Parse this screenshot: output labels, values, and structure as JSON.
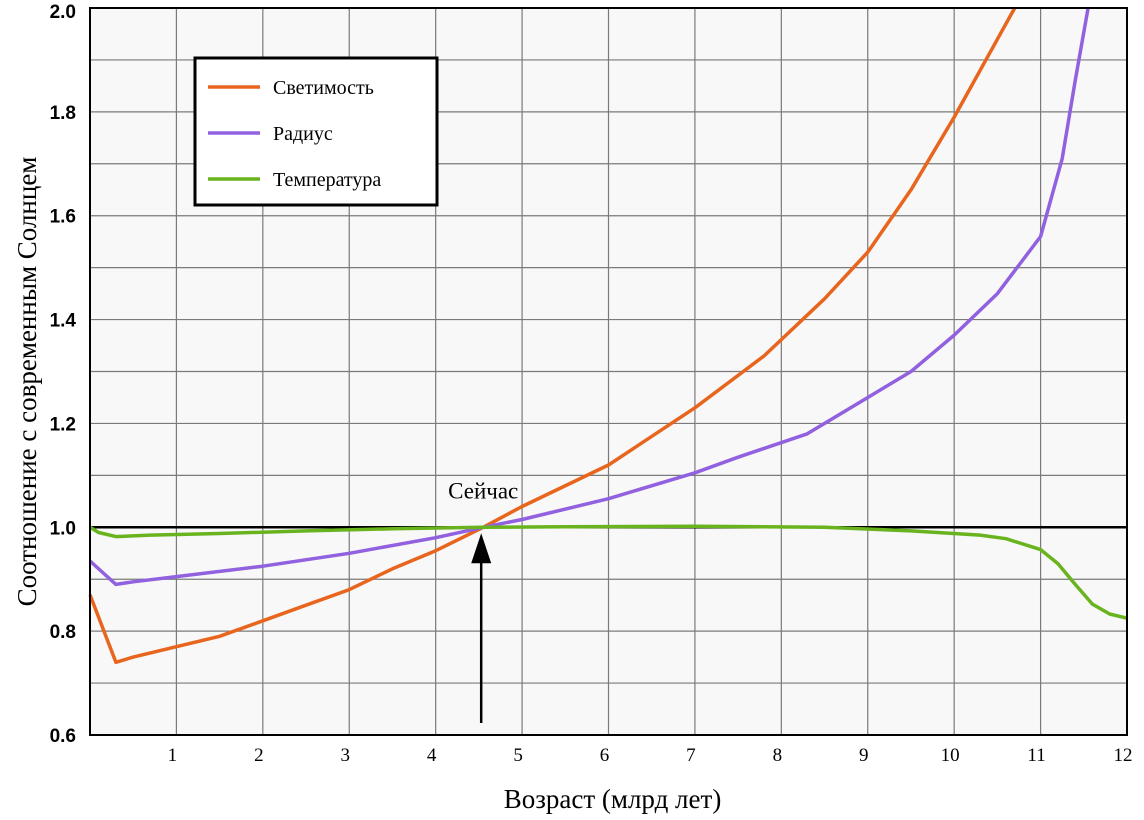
{
  "chart_data": {
    "type": "line",
    "title": "",
    "xlabel": "Возраст (млрд лет)",
    "ylabel": "Соотношение с современным Солнцем",
    "xlim": [
      0,
      12
    ],
    "ylim": [
      0.6,
      2.0
    ],
    "xticks": [
      "1",
      "2",
      "3",
      "4",
      "5",
      "6",
      "7",
      "8",
      "9",
      "10",
      "11",
      "12"
    ],
    "yticks": [
      "0.6",
      "0.8",
      "1.0",
      "1.2",
      "1.4",
      "1.6",
      "1.8",
      "2.0"
    ],
    "grid": true,
    "legend_position": "top-left",
    "reference_line_y": 1.0,
    "annotation": {
      "text": "Сейчас",
      "x": 4.55,
      "y": 1.0
    },
    "series": [
      {
        "name": "Светимость",
        "color": "#e8651e",
        "points": [
          [
            0,
            0.87
          ],
          [
            0.3,
            0.74
          ],
          [
            0.5,
            0.75
          ],
          [
            1,
            0.77
          ],
          [
            1.5,
            0.79
          ],
          [
            2,
            0.82
          ],
          [
            2.5,
            0.85
          ],
          [
            3,
            0.88
          ],
          [
            3.5,
            0.92
          ],
          [
            4,
            0.955
          ],
          [
            4.55,
            1.0
          ],
          [
            5,
            1.04
          ],
          [
            6,
            1.12
          ],
          [
            7,
            1.23
          ],
          [
            7.8,
            1.33
          ],
          [
            8.5,
            1.44
          ],
          [
            9,
            1.53
          ],
          [
            9.5,
            1.65
          ],
          [
            10,
            1.79
          ],
          [
            10.5,
            1.94
          ],
          [
            10.7,
            2.0
          ]
        ]
      },
      {
        "name": "Радиус",
        "color": "#9161e0",
        "points": [
          [
            0,
            0.935
          ],
          [
            0.3,
            0.89
          ],
          [
            0.5,
            0.895
          ],
          [
            1,
            0.905
          ],
          [
            2,
            0.925
          ],
          [
            3,
            0.95
          ],
          [
            4,
            0.98
          ],
          [
            4.55,
            1.0
          ],
          [
            5,
            1.015
          ],
          [
            6,
            1.055
          ],
          [
            7,
            1.105
          ],
          [
            7.5,
            1.135
          ],
          [
            8.3,
            1.18
          ],
          [
            9,
            1.25
          ],
          [
            9.5,
            1.3
          ],
          [
            10,
            1.37
          ],
          [
            10.5,
            1.45
          ],
          [
            11,
            1.56
          ],
          [
            11.25,
            1.71
          ],
          [
            11.4,
            1.86
          ],
          [
            11.55,
            2.0
          ]
        ]
      },
      {
        "name": "Температура",
        "color": "#69b41e",
        "points": [
          [
            0,
            1.0
          ],
          [
            0.1,
            0.99
          ],
          [
            0.3,
            0.982
          ],
          [
            0.7,
            0.985
          ],
          [
            1.5,
            0.988
          ],
          [
            2.5,
            0.993
          ],
          [
            3.5,
            0.997
          ],
          [
            4.55,
            1.0
          ],
          [
            5.5,
            1.001
          ],
          [
            7,
            1.002
          ],
          [
            8.5,
            1.0
          ],
          [
            9.5,
            0.993
          ],
          [
            10.3,
            0.985
          ],
          [
            10.6,
            0.978
          ],
          [
            11,
            0.957
          ],
          [
            11.2,
            0.93
          ],
          [
            11.4,
            0.89
          ],
          [
            11.6,
            0.852
          ],
          [
            11.8,
            0.833
          ],
          [
            12,
            0.825
          ]
        ]
      }
    ]
  }
}
